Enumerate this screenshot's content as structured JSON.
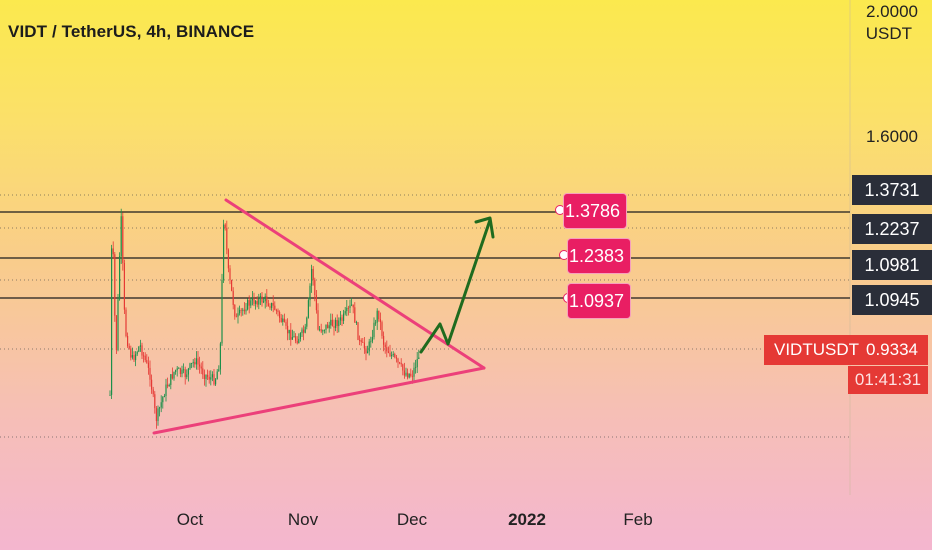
{
  "chart_data": {
    "type": "candlestick",
    "title": "VIDT / TetherUS, 4h, BINANCE",
    "symbol": "VIDTUSDT",
    "last_price": "0.9334",
    "countdown": "01:41:31",
    "currency_label": "USDT",
    "y_ticks": [
      "2.0000",
      "1.6000"
    ],
    "price_scale_labels": [
      "1.3731",
      "1.2237",
      "1.0981",
      "1.0945"
    ],
    "level_labels": [
      "1.3786",
      "1.2383",
      "1.0937"
    ],
    "x_ticks": [
      {
        "label": "Oct",
        "bold": false
      },
      {
        "label": "Nov",
        "bold": false
      },
      {
        "label": "Dec",
        "bold": false
      },
      {
        "label": "2022",
        "bold": true
      },
      {
        "label": "Feb",
        "bold": false
      }
    ],
    "colors": {
      "up": "#1b8f4a",
      "down": "#e53935",
      "triangle": "#ec407a",
      "arrow": "#1f6b1f",
      "levels": "#1c1c1c",
      "last_price": "#e53935"
    }
  }
}
